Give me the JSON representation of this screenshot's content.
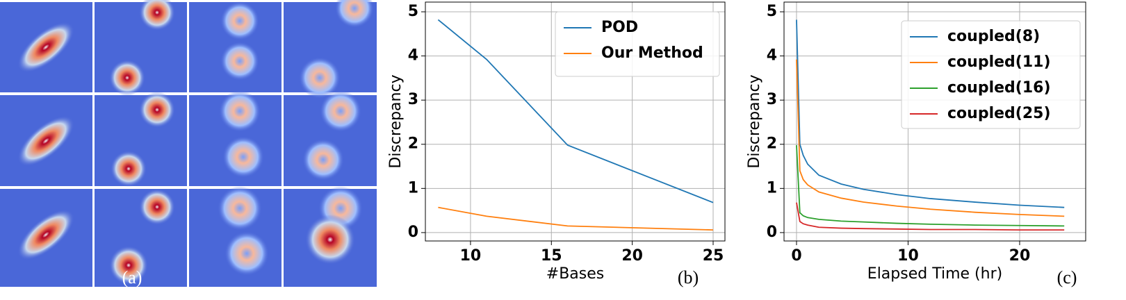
{
  "image_panel": {
    "label": "(a)"
  },
  "chart_data": [
    {
      "type": "line",
      "label": "(b)",
      "xlabel": "#Bases",
      "ylabel": "Discrepancy",
      "x": [
        8,
        11,
        16,
        25
      ],
      "series": [
        {
          "name": "POD",
          "color": "#1f77b4",
          "values": [
            4.82,
            3.92,
            1.98,
            0.68
          ]
        },
        {
          "name": "Our Method",
          "color": "#ff7f0e",
          "values": [
            0.57,
            0.37,
            0.15,
            0.06
          ]
        }
      ],
      "xlim": [
        7.21,
        25.73
      ],
      "xticks": [
        10,
        15,
        20,
        25
      ],
      "ylim": [
        -0.19,
        5.22
      ],
      "yticks": [
        0,
        1,
        2,
        3,
        4,
        5
      ],
      "grid": true,
      "legend": "upper right"
    },
    {
      "type": "line",
      "label": "(c)",
      "xlabel": "Elapsed Time (hr)",
      "ylabel": "Discrepancy",
      "x": [
        0,
        0.3,
        0.6,
        1,
        2,
        4,
        6,
        9,
        12,
        16,
        20,
        24
      ],
      "series": [
        {
          "name": "coupled(8)",
          "color": "#1f77b4",
          "values": [
            4.82,
            2.0,
            1.75,
            1.55,
            1.3,
            1.1,
            0.98,
            0.86,
            0.77,
            0.69,
            0.62,
            0.57
          ]
        },
        {
          "name": "coupled(11)",
          "color": "#ff7f0e",
          "values": [
            3.92,
            1.4,
            1.2,
            1.08,
            0.92,
            0.78,
            0.69,
            0.6,
            0.53,
            0.46,
            0.41,
            0.37
          ]
        },
        {
          "name": "coupled(16)",
          "color": "#2ca02c",
          "values": [
            1.98,
            0.45,
            0.38,
            0.34,
            0.3,
            0.26,
            0.24,
            0.21,
            0.19,
            0.17,
            0.16,
            0.15
          ]
        },
        {
          "name": "coupled(25)",
          "color": "#d62728",
          "values": [
            0.68,
            0.25,
            0.2,
            0.17,
            0.12,
            0.1,
            0.09,
            0.08,
            0.07,
            0.07,
            0.06,
            0.06
          ]
        }
      ],
      "xlim": [
        -1.12,
        25.92
      ],
      "xticks": [
        0,
        10,
        20
      ],
      "ylim": [
        -0.19,
        5.22
      ],
      "yticks": [
        0,
        1,
        2,
        3,
        4,
        5
      ],
      "grid": true,
      "legend": "upper right"
    }
  ]
}
